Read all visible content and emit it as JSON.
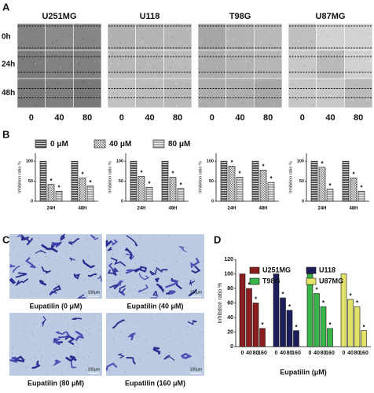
{
  "panel_labels": [
    "A",
    "B",
    "C",
    "D"
  ],
  "panel_a": {
    "cell_lines": [
      "U251MG",
      "U118",
      "T98G",
      "U87MG"
    ],
    "rows": [
      "0h",
      "24h",
      "48h"
    ],
    "doses": [
      "0",
      "40",
      "80"
    ]
  },
  "panel_c": {
    "captions": [
      "Eupatilin (0 μM)",
      "Eupatilin (40 μM)",
      "Eupatilin (80 μM)",
      "Eupatilin (160 μM)"
    ],
    "scale_label": "100μm"
  },
  "chart_data": [
    {
      "type": "bar",
      "ylabel": "Inhibition ratio %",
      "categories": [
        "24H",
        "48H"
      ],
      "ylim": [
        0,
        120
      ],
      "yticks": [
        0,
        50,
        100
      ],
      "significance": "*",
      "series": [
        {
          "name": "0 μM",
          "color": "#555555",
          "values": [
            100,
            100
          ]
        },
        {
          "name": "40 μM",
          "color": "#777777",
          "values": [
            42,
            58
          ]
        },
        {
          "name": "80 μM",
          "color": "#aaaaaa",
          "values": [
            25,
            38
          ]
        }
      ]
    },
    {
      "type": "bar",
      "ylabel": "Inhibition ratio %",
      "categories": [
        "24H",
        "48H"
      ],
      "ylim": [
        0,
        120
      ],
      "yticks": [
        0,
        50,
        100
      ],
      "significance": "*",
      "series": [
        {
          "color": "#555555",
          "values": [
            100,
            100
          ]
        },
        {
          "color": "#777777",
          "values": [
            62,
            60
          ]
        },
        {
          "color": "#aaaaaa",
          "values": [
            35,
            32
          ]
        }
      ]
    },
    {
      "type": "bar",
      "ylabel": "Inhibition ratio %",
      "categories": [
        "24H",
        "48H"
      ],
      "ylim": [
        0,
        120
      ],
      "yticks": [
        0,
        50,
        100
      ],
      "significance": "*",
      "series": [
        {
          "color": "#555555",
          "values": [
            100,
            100
          ]
        },
        {
          "color": "#777777",
          "values": [
            88,
            78
          ]
        },
        {
          "color": "#aaaaaa",
          "values": [
            60,
            47
          ]
        }
      ]
    },
    {
      "type": "bar",
      "ylabel": "Inhibition ratio %",
      "categories": [
        "24H",
        "48H"
      ],
      "ylim": [
        0,
        120
      ],
      "yticks": [
        0,
        50,
        100
      ],
      "significance": "*",
      "series": [
        {
          "color": "#555555",
          "values": [
            100,
            100
          ]
        },
        {
          "color": "#777777",
          "values": [
            85,
            58
          ]
        },
        {
          "color": "#aaaaaa",
          "values": [
            30,
            25
          ]
        }
      ]
    },
    {
      "type": "grouped_bar",
      "ylabel": "Inhibition ratio %",
      "xlabel": "Eupatilin (μM)",
      "categories": [
        "0",
        "40",
        "80",
        "160"
      ],
      "ylim": [
        0,
        120
      ],
      "yticks": [
        0,
        20,
        40,
        60,
        80,
        100,
        120
      ],
      "significance": "*",
      "series": [
        {
          "name": "U251MG",
          "color": "#8b1e1e",
          "values": [
            100,
            80,
            60,
            25
          ]
        },
        {
          "name": "U118",
          "color": "#1c1f5c",
          "values": [
            100,
            67,
            50,
            22
          ]
        },
        {
          "name": "T98G",
          "color": "#39b54a",
          "values": [
            100,
            73,
            55,
            25
          ]
        },
        {
          "name": "U87MG",
          "color": "#e3e36a",
          "values": [
            100,
            65,
            55,
            22
          ]
        }
      ]
    }
  ]
}
